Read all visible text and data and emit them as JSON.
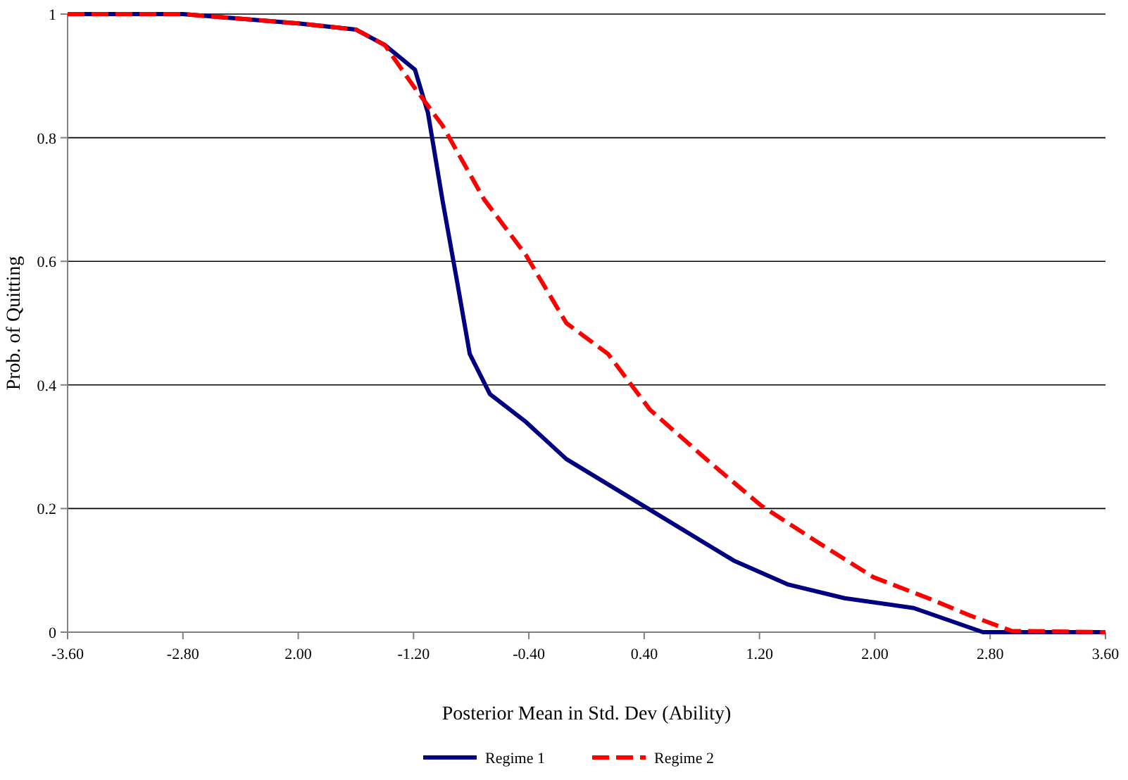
{
  "chart_data": {
    "type": "line",
    "xlabel": "Posterior Mean in Std. Dev (Ability)",
    "ylabel": "Prob. of Quitting",
    "xlim": [
      -3.6,
      3.6
    ],
    "ylim": [
      0,
      1
    ],
    "xticks": [
      {
        "value": -3.6,
        "label": "-3.60"
      },
      {
        "value": -2.8,
        "label": "-2.80"
      },
      {
        "value": -2,
        "label": "2.00"
      },
      {
        "value": -1.2,
        "label": "-1.20"
      },
      {
        "value": -0.4,
        "label": "-0.40"
      },
      {
        "value": 0.4,
        "label": "0.40"
      },
      {
        "value": 1.2,
        "label": "1.20"
      },
      {
        "value": 2,
        "label": "2.00"
      },
      {
        "value": 2.8,
        "label": "2.80"
      },
      {
        "value": 3.6,
        "label": "3.60"
      }
    ],
    "yticks": [
      0,
      0.2,
      0.4,
      0.6,
      0.8,
      1
    ],
    "grid": "y",
    "legend": "bottom",
    "marker": "none",
    "series": [
      {
        "name": "Regime 1",
        "color": "#000080",
        "line_style": "solid",
        "x": [
          -3.6,
          -2.8,
          -2.0,
          -1.6,
          -1.4,
          -1.19,
          -1.1,
          -1.0,
          -0.9,
          -0.81,
          -0.67,
          -0.42,
          -0.14,
          0.44,
          1.02,
          1.4,
          1.79,
          2.27,
          2.75,
          3.6
        ],
        "values": [
          1,
          1,
          0.985,
          0.975,
          0.95,
          0.91,
          0.84,
          0.7,
          0.57,
          0.45,
          0.385,
          0.34,
          0.28,
          0.198,
          0.116,
          0.077,
          0.055,
          0.039,
          0,
          0
        ]
      },
      {
        "name": "Regime 2",
        "color": "#ff0000",
        "line_style": "dashed",
        "x": [
          -3.6,
          -2.8,
          -2.0,
          -1.6,
          -1.4,
          -1.19,
          -1.0,
          -0.71,
          -0.42,
          -0.14,
          0.15,
          0.44,
          0.83,
          1.21,
          1.6,
          1.99,
          2.37,
          2.66,
          2.95,
          3.6
        ],
        "values": [
          1,
          1,
          0.985,
          0.975,
          0.95,
          0.88,
          0.82,
          0.7,
          0.61,
          0.5,
          0.45,
          0.36,
          0.28,
          0.205,
          0.146,
          0.089,
          0.055,
          0.027,
          0.002,
          0
        ]
      }
    ]
  }
}
